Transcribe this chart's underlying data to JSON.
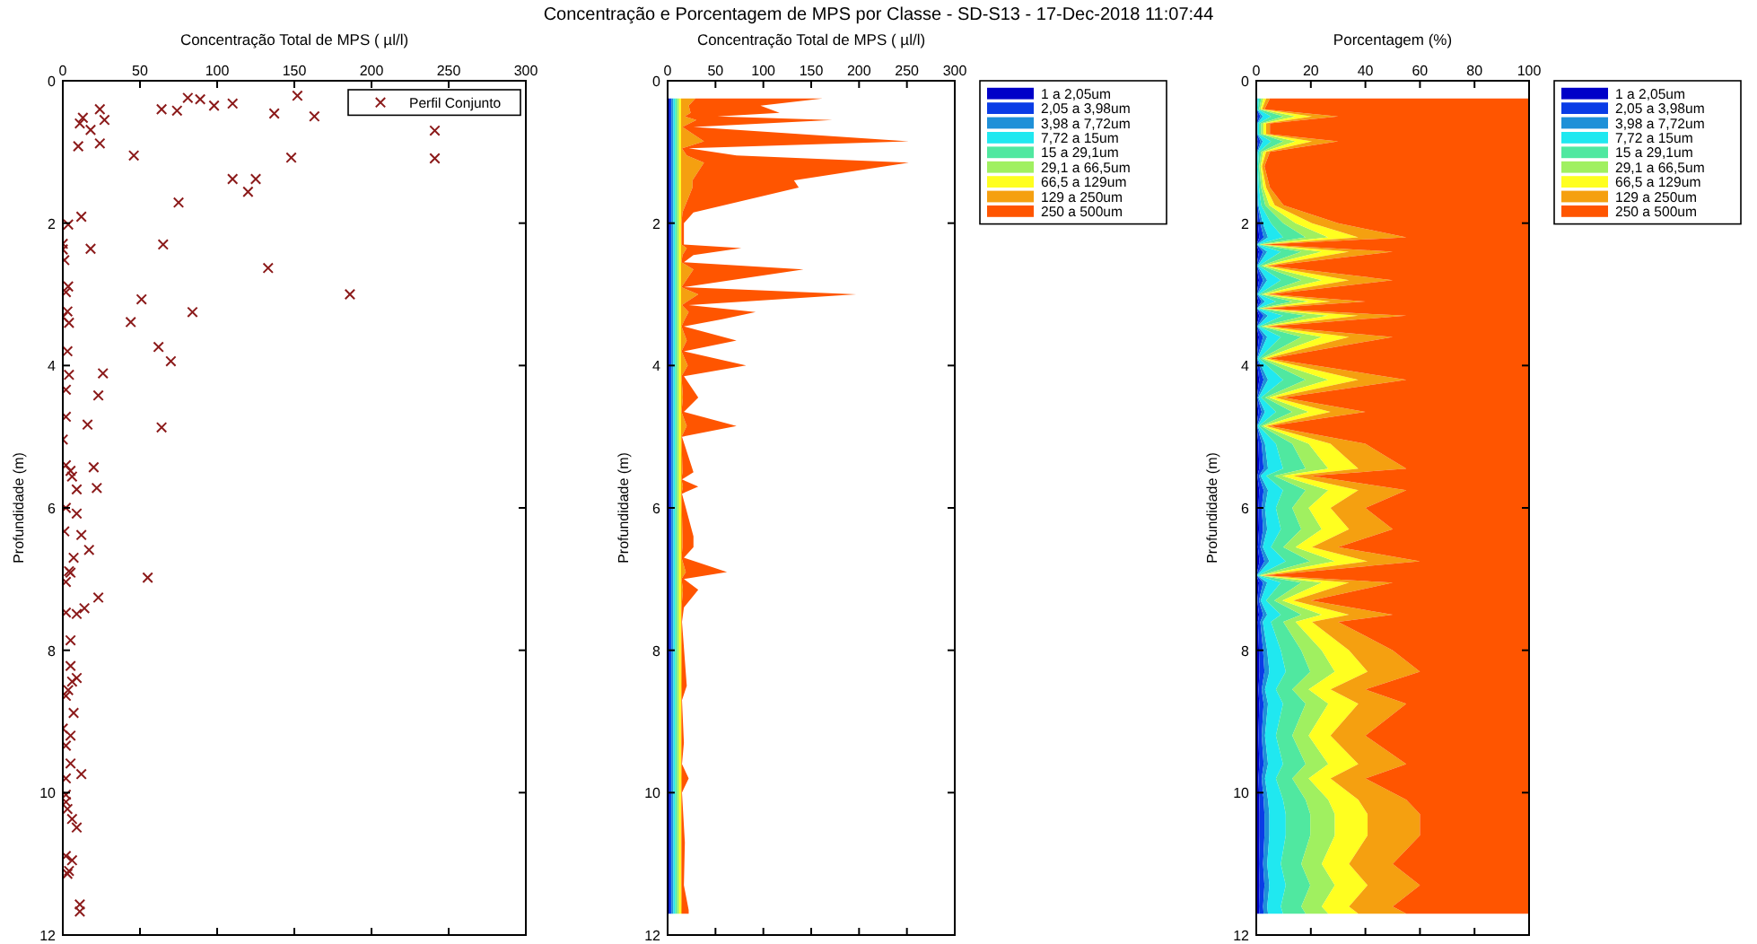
{
  "chart_data": [
    {
      "type": "scatter",
      "title": "Concentração Total de MPS ( µl/l)",
      "ylabel": "Profundidade (m)",
      "annotations": [
        "Concentração e Porcentagem de MPS por Classe - SD-S13 - 17-Dec-2018 11:07:44"
      ],
      "x": [
        24,
        64,
        74,
        81,
        89,
        98,
        110,
        152,
        137,
        163,
        13,
        11,
        27,
        18,
        241,
        10,
        24,
        46,
        148,
        241,
        110,
        125,
        120,
        75,
        12,
        3.5,
        0,
        0,
        18,
        65,
        1,
        133,
        3.5,
        2,
        186,
        51,
        3,
        84,
        0,
        4,
        44,
        62,
        3,
        70,
        26,
        4,
        2,
        23,
        2,
        16,
        64,
        0,
        2,
        20,
        5,
        6,
        22,
        9,
        2,
        9,
        1,
        12,
        17,
        7,
        4,
        5,
        2,
        55,
        23,
        14,
        9,
        2,
        5,
        5,
        9,
        6,
        3.5,
        2,
        7,
        0,
        5,
        2,
        5,
        2,
        12,
        2,
        2,
        3,
        6,
        9,
        2,
        6,
        3,
        4,
        11,
        11
      ],
      "series": [
        {
          "name": "Perfil Conjunto",
          "color": "#8b1a1a",
          "values": [
            0.4,
            0.4,
            0.42,
            0.24,
            0.26,
            0.35,
            0.32,
            0.21,
            0.46,
            0.5,
            0.52,
            0.6,
            0.55,
            0.69,
            0.7,
            0.92,
            0.88,
            1.05,
            1.08,
            1.09,
            1.38,
            1.38,
            1.56,
            1.71,
            1.91,
            2.02,
            2.29,
            2.37,
            2.36,
            2.3,
            2.52,
            2.63,
            2.89,
            2.97,
            3.0,
            3.07,
            3.24,
            3.25,
            3.32,
            3.4,
            3.39,
            3.74,
            3.8,
            3.94,
            4.11,
            4.13,
            4.34,
            4.42,
            4.72,
            4.83,
            4.87,
            5.04,
            5.4,
            5.43,
            5.48,
            5.56,
            5.72,
            5.74,
            6.0,
            6.08,
            6.33,
            6.38,
            6.59,
            6.7,
            6.89,
            6.91,
            7.04,
            6.98,
            7.26,
            7.41,
            7.49,
            7.47,
            7.86,
            8.22,
            8.39,
            8.44,
            8.56,
            8.64,
            8.88,
            9.1,
            9.2,
            9.34,
            9.59,
            9.8,
            9.74,
            10.03,
            10.13,
            10.23,
            10.37,
            10.49,
            10.89,
            10.95,
            11.14,
            11.1,
            11.57,
            11.67
          ]
        }
      ],
      "xlim": [
        0,
        300
      ],
      "xticks": [
        0,
        50,
        100,
        150,
        200,
        250,
        300
      ],
      "ylim": [
        12,
        0
      ],
      "yticks": [
        0,
        2,
        4,
        6,
        8,
        10,
        12
      ],
      "marker": "cross",
      "legend": "top right"
    },
    {
      "type": "area",
      "stacked": true,
      "orientation": "horizontal",
      "title": "Concentração Total de MPS ( µl/l)",
      "ylabel": "Profundidade (m)",
      "x": [
        0.25,
        0.35,
        0.45,
        0.5,
        0.55,
        0.65,
        0.85,
        0.95,
        1.05,
        1.15,
        1.4,
        1.5,
        1.85,
        2.0,
        2.3,
        2.35,
        2.45,
        2.55,
        2.65,
        2.9,
        3.0,
        3.15,
        3.25,
        3.35,
        3.45,
        3.65,
        3.8,
        4.0,
        4.15,
        4.45,
        4.65,
        4.85,
        5.0,
        5.5,
        5.6,
        5.7,
        5.8,
        6.4,
        6.55,
        6.7,
        6.9,
        7.0,
        7.15,
        7.4,
        7.6,
        8.5,
        8.7,
        9.3,
        9.6,
        9.8,
        10.0,
        10.7,
        11.3,
        11.65,
        11.7
      ],
      "series": [
        {
          "name": "1 a 2,05um",
          "color": "#0000c8",
          "values": [
            2,
            2,
            2,
            2,
            2,
            2,
            2,
            2,
            2,
            2,
            2,
            2,
            2,
            2,
            2,
            2,
            2,
            2,
            2,
            2,
            2,
            2,
            2,
            2,
            2,
            2,
            2,
            2,
            2,
            2,
            2,
            2,
            2,
            2,
            2,
            2,
            2,
            2,
            2,
            2,
            2,
            2,
            2,
            2,
            2,
            2,
            2,
            2,
            2,
            2,
            2,
            2,
            2,
            2,
            2
          ]
        },
        {
          "name": "2,05 a 3,98um",
          "color": "#0a3ce6",
          "values": [
            2,
            2,
            2,
            2,
            2,
            2,
            2,
            2,
            2,
            2,
            2,
            2,
            2,
            2,
            2,
            2,
            2,
            2,
            2,
            2,
            2,
            2,
            2,
            2,
            2,
            2,
            2,
            2,
            2,
            2,
            2,
            2,
            2,
            2,
            2,
            2,
            2,
            2,
            2,
            2,
            2,
            2,
            2,
            2,
            2,
            2,
            2,
            2,
            2,
            2,
            2,
            2,
            2,
            2,
            2
          ]
        },
        {
          "name": "3,98 a 7,72um",
          "color": "#1e90d8",
          "values": [
            2,
            2,
            2,
            2,
            2,
            2,
            2,
            2,
            2,
            2,
            2,
            2,
            2,
            2,
            2,
            2,
            2,
            2,
            2,
            2,
            2,
            2,
            2,
            2,
            2,
            2,
            2,
            2,
            2,
            2,
            2,
            2,
            2,
            2,
            2,
            2,
            2,
            2,
            2,
            2,
            2,
            2,
            2,
            2,
            2,
            2,
            2,
            2,
            2,
            2,
            2,
            2,
            2,
            2,
            2
          ]
        },
        {
          "name": "7,72 a 15um",
          "color": "#20e8f0",
          "values": [
            2,
            2,
            2,
            2,
            2,
            2,
            2,
            2,
            2,
            2,
            2,
            2,
            2,
            2,
            2,
            2,
            2,
            2,
            2,
            2,
            2,
            2,
            2,
            2,
            2,
            2,
            2,
            2,
            2,
            2,
            2,
            2,
            2,
            2,
            2,
            2,
            2,
            2,
            2,
            2,
            2,
            2,
            2,
            2,
            2,
            2,
            2,
            2,
            2,
            2,
            2,
            2,
            2,
            2,
            2
          ]
        },
        {
          "name": "15 a 29,1um",
          "color": "#50e8a0",
          "values": [
            2,
            2,
            2,
            2,
            2,
            2,
            2,
            2,
            2,
            2,
            2,
            2,
            2,
            2,
            2,
            2,
            2,
            2,
            2,
            2,
            2,
            2,
            2,
            2,
            2,
            2,
            2,
            2,
            2,
            2,
            2,
            2,
            2,
            2,
            2,
            2,
            2,
            2,
            2,
            2,
            2,
            2,
            2,
            2,
            2,
            2,
            2,
            2,
            2,
            2,
            2,
            2,
            2,
            2,
            2
          ]
        },
        {
          "name": "29,1 a 66,5um",
          "color": "#a0f060",
          "values": [
            2,
            2,
            2,
            2,
            2,
            2,
            2,
            2,
            2,
            2,
            2,
            2,
            2,
            2,
            2,
            2,
            2,
            2,
            2,
            2,
            2,
            2,
            2,
            2,
            2,
            2,
            2,
            2,
            2,
            2,
            2,
            2,
            2,
            2,
            2,
            2,
            2,
            2,
            2,
            2,
            2,
            2,
            2,
            2,
            2,
            2,
            2,
            2,
            2,
            2,
            2,
            2,
            2,
            2,
            2
          ]
        },
        {
          "name": "66,5 a 129um",
          "color": "#ffff20",
          "values": [
            2,
            2,
            2,
            2,
            2,
            2,
            2,
            2,
            2,
            2,
            2,
            2,
            2,
            2,
            2,
            2,
            2,
            2,
            2,
            2,
            2,
            2,
            2,
            2,
            2,
            2,
            2,
            2,
            2,
            2,
            2,
            2,
            2,
            2,
            2,
            2,
            2,
            2,
            2,
            2,
            2,
            2,
            2,
            2,
            2,
            2,
            2,
            2,
            2,
            2,
            2,
            2,
            2,
            2,
            2
          ]
        },
        {
          "name": "129 a 250um",
          "color": "#f5a010",
          "values": [
            15,
            8,
            10,
            4,
            16,
            1.5,
            24,
            1,
            6,
            24,
            12,
            12,
            1.5,
            0.5,
            0.5,
            6,
            1.5,
            0.5,
            13,
            0.5,
            18,
            1,
            8,
            4,
            0.5,
            6,
            0.5,
            7,
            0.5,
            2,
            0.5,
            6,
            0.5,
            1.5,
            0.5,
            2,
            0.5,
            1.5,
            1.5,
            0.5,
            5,
            0.5,
            2,
            0.5,
            0.5,
            1,
            0.5,
            0.5,
            0.5,
            1,
            0.5,
            0.5,
            0.5,
            1,
            1
          ]
        },
        {
          "name": "250 a 500um",
          "color": "#ff5500",
          "values": [
            133,
            75,
            93,
            34,
            142,
            11.5,
            214,
            7,
            52,
            214,
            106,
            111,
            11.5,
            2.5,
            2.5,
            57,
            11.5,
            2.5,
            115,
            2.5,
            165,
            7,
            70,
            39,
            2.5,
            52,
            2.5,
            61,
            2.5,
            16,
            2.5,
            52,
            0.5,
            11.5,
            0.5,
            16,
            0.5,
            11.5,
            11.5,
            2.5,
            43,
            2.5,
            16,
            2.5,
            0.5,
            5,
            0.5,
            2.5,
            0.5,
            7,
            0.5,
            3.5,
            2.5,
            7,
            7
          ]
        }
      ],
      "xlim": [
        0,
        300
      ],
      "xticks": [
        0,
        50,
        100,
        150,
        200,
        250,
        300
      ],
      "ylim": [
        12,
        0
      ],
      "yticks": [
        0,
        2,
        4,
        6,
        8,
        10,
        12
      ],
      "legend": "right"
    },
    {
      "type": "area",
      "stacked": true,
      "orientation": "horizontal",
      "title": "Porcentagem (%)",
      "ylabel": "Profundidade (m)",
      "x": [
        0.25,
        0.4,
        0.5,
        0.6,
        0.75,
        0.85,
        1.0,
        1.2,
        1.5,
        1.75,
        2.0,
        2.2,
        2.3,
        2.4,
        2.6,
        2.8,
        3.0,
        3.1,
        3.2,
        3.3,
        3.45,
        3.6,
        3.9,
        4.05,
        4.2,
        4.45,
        4.65,
        4.85,
        5.1,
        5.45,
        5.55,
        5.75,
        6.0,
        6.3,
        6.55,
        6.75,
        6.95,
        7.05,
        7.3,
        7.5,
        7.6,
        8.0,
        8.3,
        8.55,
        8.75,
        9.2,
        9.6,
        9.8,
        10.1,
        10.3,
        10.6,
        11.0,
        11.3,
        11.6,
        11.7
      ],
      "series": [
        {
          "name": "1 a 2,05um",
          "color": "#0000c8",
          "values": [
            0.1,
            0.1,
            0.6,
            0.1,
            0.1,
            0.6,
            0.1,
            0.1,
            0.1,
            0.2,
            0.6,
            1.1,
            0.1,
            1,
            0.1,
            1,
            0.1,
            0.8,
            0.1,
            1.1,
            0.1,
            1,
            0.1,
            0.6,
            1.1,
            0.2,
            0.8,
            0.1,
            0.8,
            1.1,
            0.4,
            1.1,
            0.8,
            1,
            0.6,
            1.2,
            0.1,
            1,
            0.4,
            1,
            0.6,
            1,
            1.2,
            0.8,
            1.1,
            0.8,
            1.1,
            0.8,
            1.1,
            1.2,
            1.2,
            1,
            1.2,
            1,
            1.1
          ]
        },
        {
          "name": "2,05 a 3,98um",
          "color": "#0a3ce6",
          "values": [
            0.2,
            0.1,
            0.9,
            0.2,
            0.2,
            0.9,
            0.2,
            0.1,
            0.2,
            0.3,
            0.9,
            1.6,
            0.1,
            1.5,
            0.2,
            1.5,
            0.2,
            1.2,
            0.1,
            1.6,
            0.2,
            1.5,
            0.2,
            0.9,
            1.6,
            0.3,
            1.2,
            0.2,
            1.2,
            1.6,
            0.6,
            1.6,
            1.2,
            1.5,
            0.9,
            1.8,
            0.1,
            1.5,
            0.6,
            1.5,
            0.9,
            1.5,
            1.8,
            1.2,
            1.6,
            1.2,
            1.6,
            1.2,
            1.6,
            1.8,
            1.8,
            1.5,
            1.8,
            1.5,
            1.6
          ]
        },
        {
          "name": "3,98 a 7,72um",
          "color": "#1e90d8",
          "values": [
            0.2,
            0.1,
            0.9,
            0.2,
            0.2,
            0.9,
            0.2,
            0.1,
            0.2,
            0.3,
            0.9,
            1.6,
            0.1,
            1.5,
            0.2,
            1.5,
            0.2,
            1.2,
            0.1,
            1.6,
            0.2,
            1.5,
            0.2,
            0.9,
            1.6,
            0.3,
            1.2,
            0.2,
            1.2,
            1.6,
            0.6,
            1.6,
            1.2,
            1.5,
            0.9,
            1.8,
            0.1,
            1.5,
            0.6,
            1.5,
            0.9,
            1.5,
            1.8,
            1.2,
            1.6,
            1.2,
            1.6,
            1.2,
            1.6,
            1.8,
            1.8,
            1.5,
            1.8,
            1.5,
            1.6
          ]
        },
        {
          "name": "7,72 a 15um",
          "color": "#20e8f0",
          "values": [
            0.5,
            0.3,
            3,
            0.5,
            0.5,
            3,
            0.5,
            0.3,
            0.5,
            1,
            3,
            5.5,
            0.3,
            5,
            0.5,
            5,
            0.5,
            4,
            0.3,
            5.5,
            0.5,
            5,
            0.5,
            3,
            5.5,
            1,
            4,
            0.5,
            4,
            5.5,
            2,
            5.5,
            4,
            5,
            3,
            6,
            0.3,
            5,
            2,
            5,
            3,
            5,
            6,
            4,
            5.5,
            4,
            5.5,
            4,
            5.5,
            6,
            6,
            5,
            6,
            5,
            5.5
          ]
        },
        {
          "name": "15 a 29,1um",
          "color": "#50e8a0",
          "values": [
            0.8,
            0.5,
            4.5,
            0.8,
            0.8,
            4.5,
            0.8,
            0.5,
            0.8,
            1.5,
            4.5,
            8.3,
            0.5,
            7.5,
            0.8,
            7.5,
            0.8,
            6,
            0.5,
            8.3,
            0.8,
            7.5,
            0.8,
            4.5,
            8.3,
            1.5,
            6,
            0.8,
            6,
            8.3,
            3,
            8.3,
            6,
            7.5,
            4.5,
            9,
            0.5,
            7.5,
            3,
            7.5,
            4.5,
            7.5,
            9,
            6,
            8.3,
            6,
            8.3,
            6,
            8.3,
            9,
            9,
            7.5,
            9,
            7.5,
            8.3
          ]
        },
        {
          "name": "29,1 a 66,5um",
          "color": "#a0f060",
          "values": [
            0.8,
            0.5,
            4.5,
            0.8,
            0.8,
            4.5,
            0.8,
            0.5,
            0.8,
            1.5,
            4.5,
            8.3,
            0.5,
            7.5,
            0.8,
            7.5,
            0.8,
            6,
            0.5,
            8.3,
            0.8,
            7.5,
            0.8,
            4.5,
            8.3,
            1.5,
            6,
            0.8,
            6,
            8.3,
            3,
            8.3,
            6,
            7.5,
            4.5,
            9,
            0.5,
            7.5,
            3,
            7.5,
            4.5,
            7.5,
            9,
            6,
            8.3,
            6,
            8.3,
            6,
            8.3,
            9,
            9,
            7.5,
            9,
            7.5,
            8.3
          ]
        },
        {
          "name": "66,5 a 129um",
          "color": "#ffff20",
          "values": [
            1,
            0.5,
            6,
            1,
            1,
            6,
            1,
            0.5,
            1,
            2,
            6,
            11,
            0.5,
            10,
            1,
            10,
            1,
            8,
            0.5,
            11,
            1,
            10,
            1,
            6,
            11,
            2,
            8,
            1,
            8,
            11,
            4,
            11,
            8,
            10,
            6,
            12,
            0.5,
            10,
            4,
            10,
            6,
            10,
            12,
            8,
            11,
            8,
            11,
            8,
            11,
            12,
            12,
            10,
            12,
            10,
            11
          ]
        },
        {
          "name": "129 a 250um",
          "color": "#f5a010",
          "values": [
            1.4,
            0.9,
            9.6,
            1.4,
            1.4,
            9.6,
            1.4,
            0.9,
            1.4,
            3.2,
            9.6,
            17.6,
            0.9,
            16,
            1.4,
            16,
            1.4,
            12.8,
            0.9,
            17.6,
            1.4,
            16,
            1.4,
            9.6,
            17.6,
            3.2,
            12.8,
            1.4,
            12.8,
            17.6,
            6.4,
            17.6,
            12.8,
            16,
            9.6,
            19.2,
            0.9,
            16,
            6.4,
            16,
            9.6,
            16,
            19.2,
            12.8,
            17.6,
            12.8,
            17.6,
            12.8,
            17.6,
            19.2,
            19.2,
            16,
            19.2,
            16,
            17.6
          ]
        },
        {
          "name": "250 a 500um",
          "color": "#ff5500",
          "values": [
            95,
            97,
            70,
            95,
            95,
            70,
            95,
            97,
            95,
            90,
            70,
            45,
            97,
            50,
            95,
            50,
            95,
            60,
            97,
            45,
            95,
            50,
            95,
            70,
            45,
            90,
            60,
            95,
            60,
            45,
            80,
            45,
            60,
            50,
            70,
            40,
            97,
            50,
            80,
            50,
            70,
            50,
            40,
            60,
            45,
            60,
            45,
            60,
            45,
            40,
            40,
            50,
            40,
            50,
            45
          ]
        }
      ],
      "xlim": [
        0,
        100
      ],
      "xticks": [
        0,
        20,
        40,
        60,
        80,
        100
      ],
      "ylim": [
        12,
        0
      ],
      "yticks": [
        0,
        2,
        4,
        6,
        8,
        10,
        12
      ],
      "legend": "right"
    }
  ]
}
